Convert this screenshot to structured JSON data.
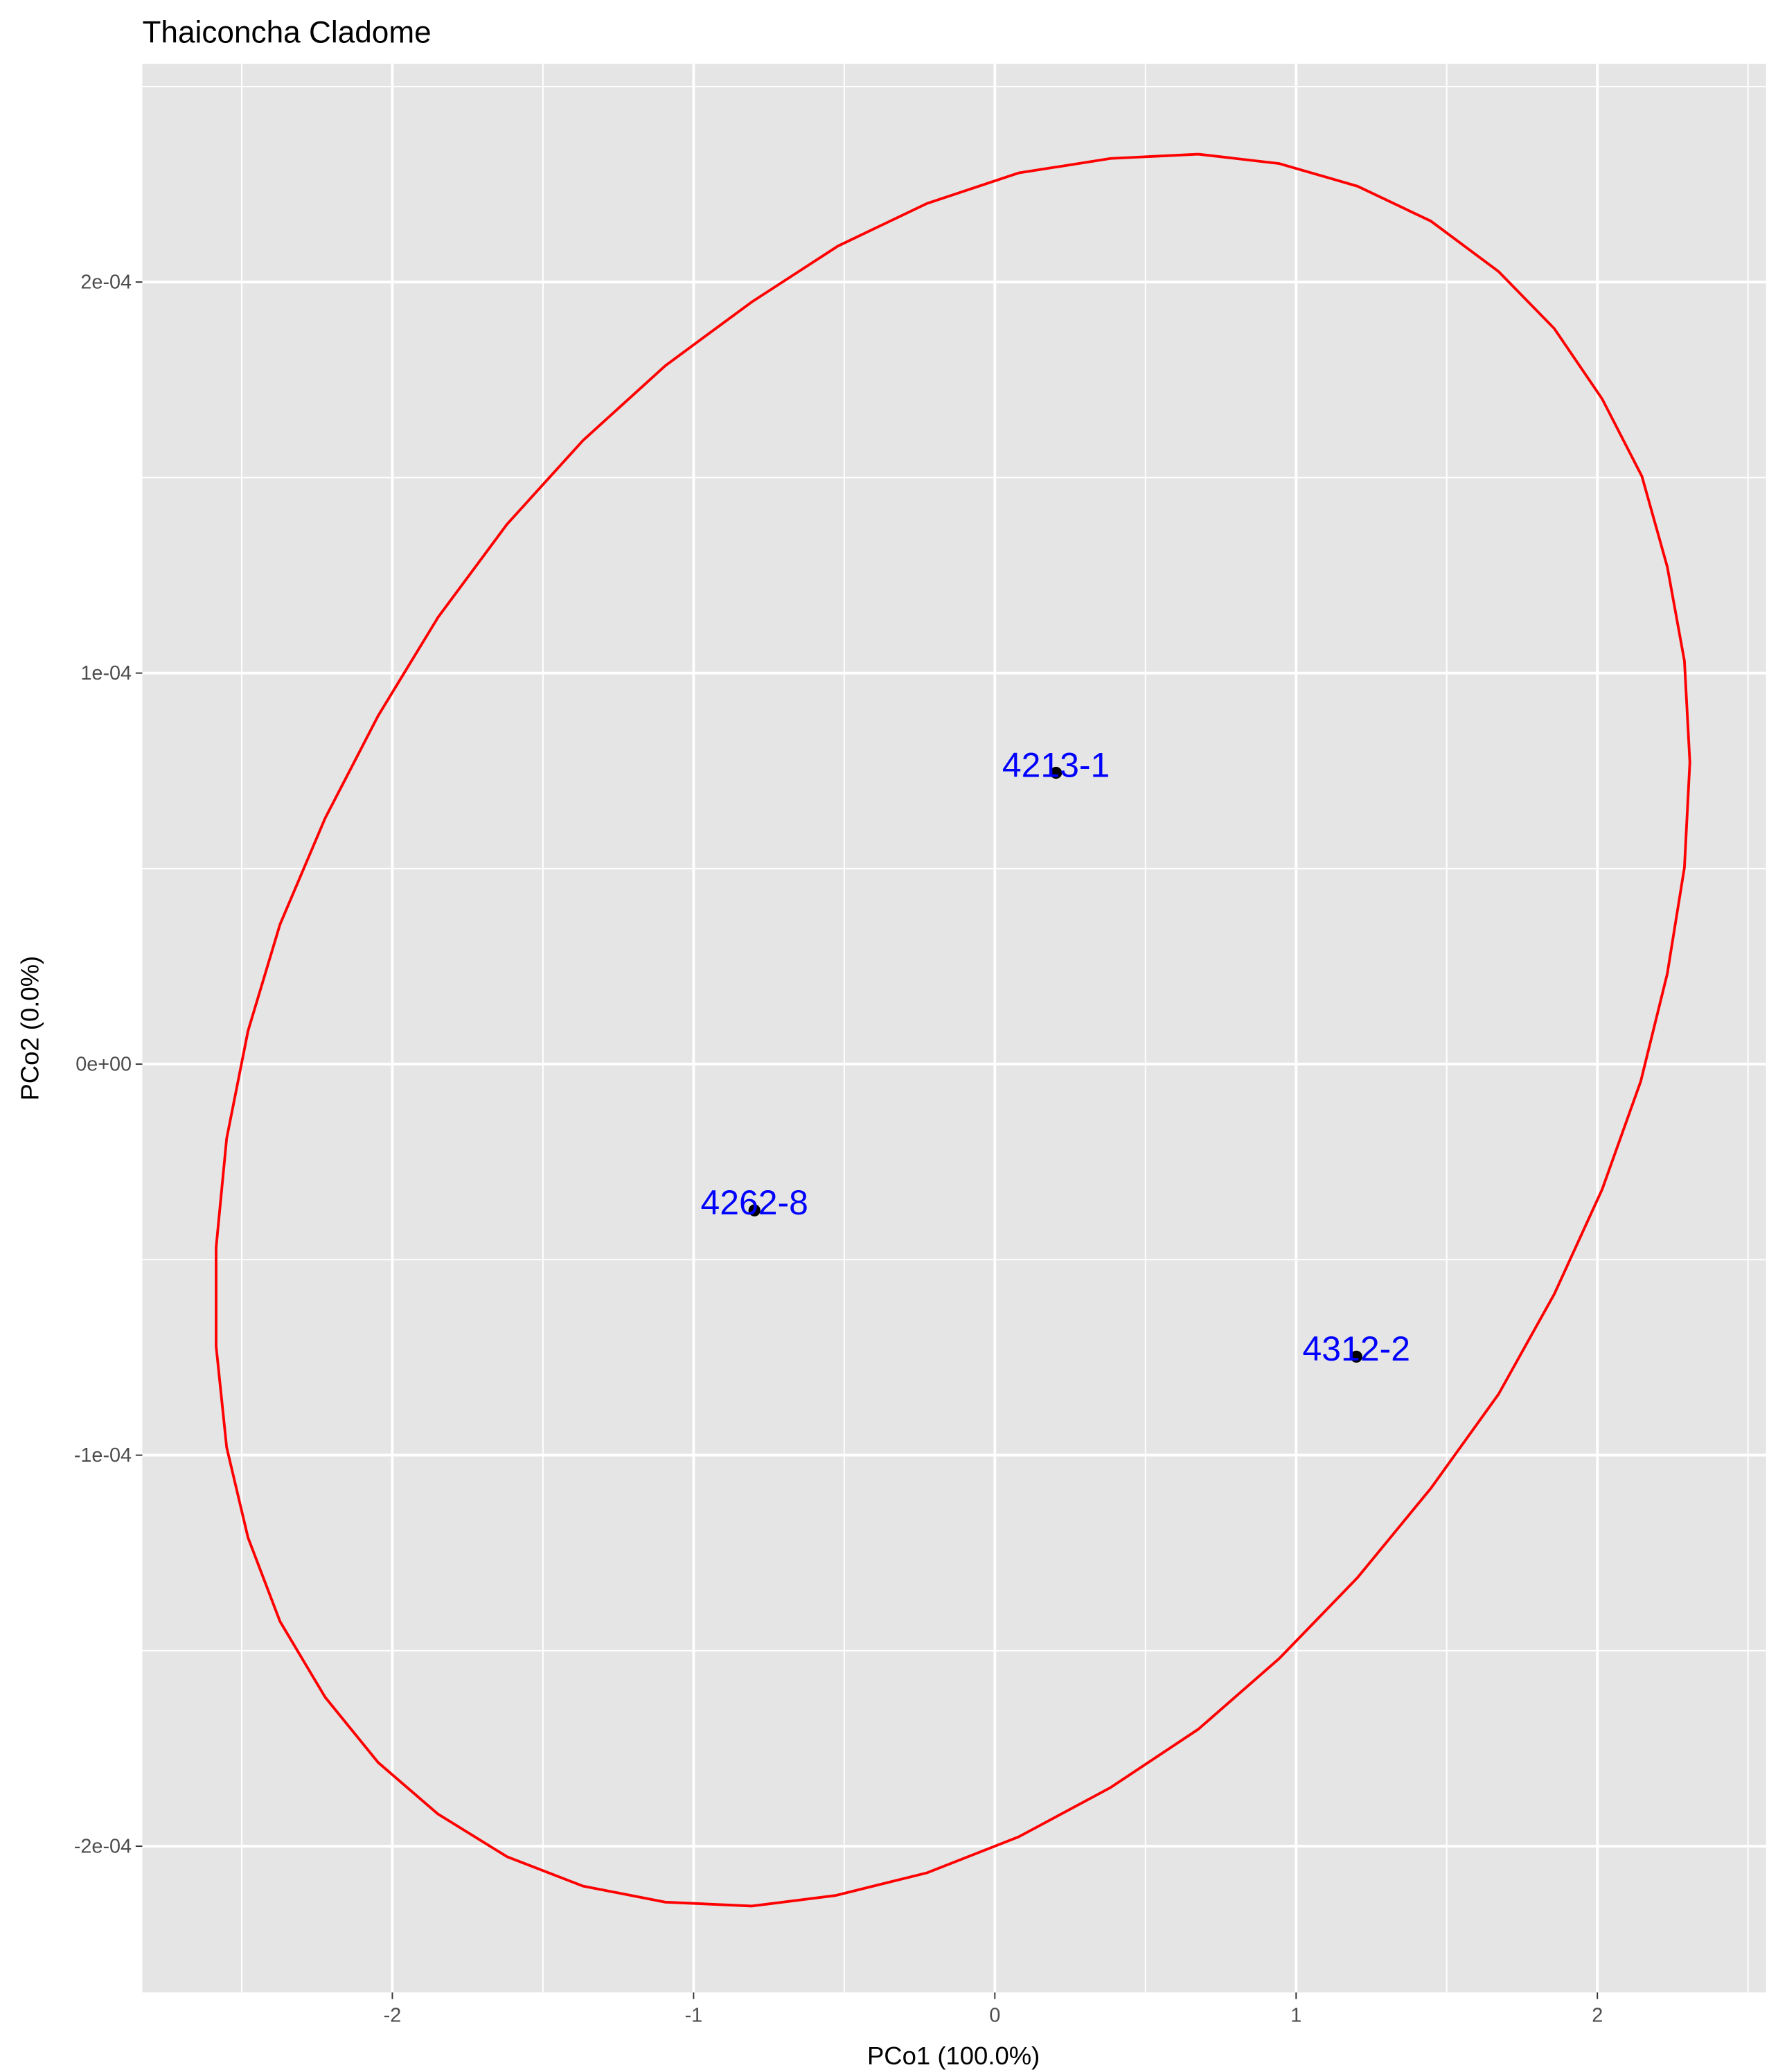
{
  "chart_data": {
    "type": "scatter",
    "title": "Thaiconcha Cladome",
    "xlabel": "PCo1 (100.0%)",
    "ylabel": "PCo2 (0.0%)",
    "x": [
      0.203,
      -0.798,
      1.2
    ],
    "y": [
      7.45e-05,
      -3.74e-05,
      -7.48e-05
    ],
    "labels": [
      "4213-1",
      "4262-8",
      "4312-2"
    ],
    "point_color": "#000000",
    "label_color": "#0000ff",
    "ellipse": {
      "color": "#ff0000",
      "x": [
        0.675,
        0.944,
        1.204,
        1.447,
        1.672,
        1.857,
        2.016,
        2.148,
        2.232,
        2.289,
        2.307,
        2.289,
        2.232,
        2.144,
        2.016,
        1.857,
        1.672,
        1.447,
        1.204,
        0.944,
        0.675,
        0.384,
        0.079,
        -0.225,
        -0.529,
        -0.807,
        -1.094,
        -1.367,
        -1.619,
        -1.848,
        -2.047,
        -2.223,
        -2.373,
        -2.479,
        -2.55,
        -2.585,
        -2.585,
        -2.55,
        -2.479,
        -2.373,
        -2.223,
        -2.047,
        -1.848,
        -1.619,
        -1.367,
        -1.094,
        -0.807,
        -0.521,
        -0.225,
        0.079,
        0.384,
        0.675
      ],
      "y": [
        0.0002327,
        0.0002303,
        0.0002245,
        0.0002156,
        0.0002027,
        0.0001881,
        0.0001701,
        0.0001503,
        0.0001272,
        0.0001031,
        7.72e-05,
        5.03e-05,
        2.31e-05,
        -4.4e-06,
        -3.2e-05,
        -5.88e-05,
        -8.44e-05,
        -0.0001085,
        -0.0001313,
        -0.000152,
        -0.0001701,
        -0.000185,
        -0.0001976,
        -0.0002068,
        -0.0002126,
        -0.0002153,
        -0.0002143,
        -0.0002102,
        -0.0002027,
        -0.0001918,
        -0.0001786,
        -0.0001619,
        -0.0001425,
        -0.0001211,
        -9.8e-05,
        -7.21e-05,
        -4.69e-05,
        -1.9e-05,
        8.5e-06,
        3.57e-05,
        6.29e-05,
        8.91e-05,
        0.0001143,
        0.0001381,
        0.0001595,
        0.0001786,
        0.0001949,
        0.0002092,
        0.0002201,
        0.0002279,
        0.0002316,
        0.0002327
      ]
    },
    "xlim": [
      -2.83,
      2.56
    ],
    "ylim": [
      -0.0002374,
      0.0002558
    ],
    "xticks": [
      -2,
      -1,
      0,
      1,
      2
    ],
    "yticks": [
      {
        "value": -0.0002,
        "label": "-2e-04"
      },
      {
        "value": -0.0001,
        "label": "-1e-04"
      },
      {
        "value": 0,
        "label": "0e+00"
      },
      {
        "value": 0.0001,
        "label": "1e-04"
      },
      {
        "value": 0.0002,
        "label": "2e-04"
      }
    ],
    "xminorticks": [
      -2.5,
      -1.5,
      -0.5,
      0.5,
      1.5,
      2.5
    ],
    "yminorticks": [
      -0.00015,
      -5e-05,
      5e-05,
      0.00015,
      0.00025
    ],
    "grid": true,
    "panel_color": "#e5e5e5"
  }
}
